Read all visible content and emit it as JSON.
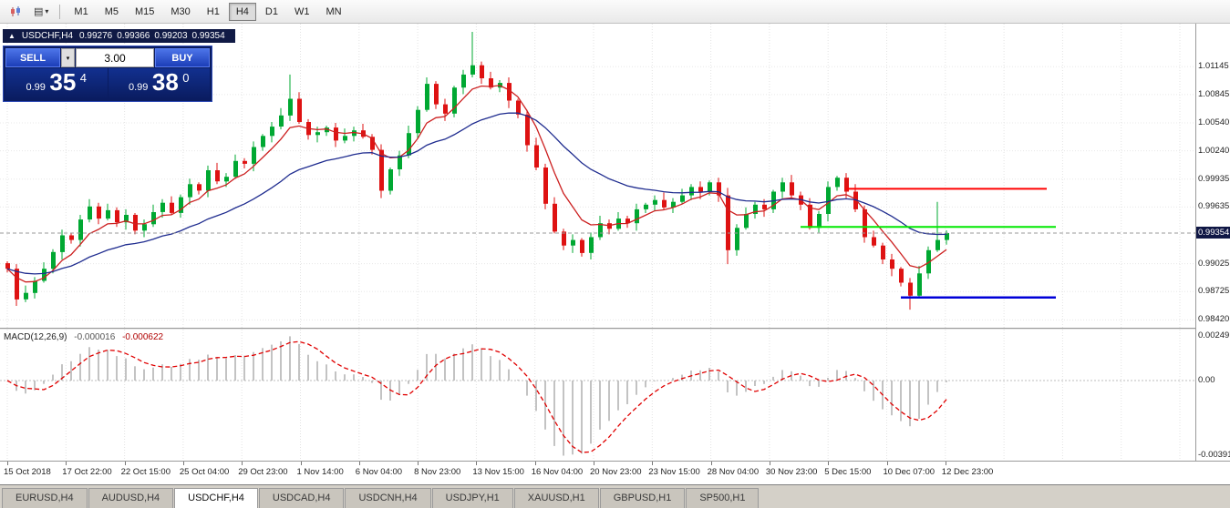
{
  "toolbar": {
    "timeframes": [
      "M1",
      "M5",
      "M15",
      "M30",
      "H1",
      "H4",
      "D1",
      "W1",
      "MN"
    ],
    "active_timeframe": "H4"
  },
  "chart_header": {
    "symbol": "USDCHF,H4",
    "open": "0.99276",
    "high": "0.99366",
    "low": "0.99203",
    "close": "0.99354"
  },
  "trade_panel": {
    "sell_label": "SELL",
    "buy_label": "BUY",
    "volume": "3.00",
    "sell_price": {
      "prefix": "0.99",
      "big": "35",
      "sup": "4"
    },
    "buy_price": {
      "prefix": "0.99",
      "big": "38",
      "sup": "0"
    }
  },
  "price_axis": {
    "labels": [
      "1.01145",
      "1.00845",
      "1.00540",
      "1.00240",
      "0.99935",
      "0.99635",
      "0.99025",
      "0.98725",
      "0.98420"
    ],
    "current_price": "0.99354"
  },
  "macd_panel": {
    "label": "MACD(12,26,9)",
    "value_main": "-0.000016",
    "value_signal": "-0.000622",
    "axis_labels": [
      "0.00249",
      "0.00",
      "-0.00391"
    ]
  },
  "time_axis": [
    "15 Oct 2018",
    "17 Oct 22:00",
    "22 Oct 15:00",
    "25 Oct 04:00",
    "29 Oct 23:00",
    "1 Nov 14:00",
    "6 Nov 04:00",
    "8 Nov 23:00",
    "13 Nov 15:00",
    "16 Nov 04:00",
    "20 Nov 23:00",
    "23 Nov 15:00",
    "28 Nov 04:00",
    "30 Nov 23:00",
    "5 Dec 15:00",
    "10 Dec 07:00",
    "12 Dec 23:00"
  ],
  "tabs": {
    "items": [
      "EURUSD,H4",
      "AUDUSD,H4",
      "USDCHF,H4",
      "USDCAD,H4",
      "USDCNH,H4",
      "USDJPY,H1",
      "XAUUSD,H1",
      "GBPUSD,H1",
      "SP500,H1"
    ],
    "active": "USDCHF,H4"
  },
  "chart_data": {
    "type": "candlestick",
    "symbol": "USDCHF",
    "timeframe": "H4",
    "last_ohlc": {
      "open": 0.99276,
      "high": 0.99366,
      "low": 0.99203,
      "close": 0.99354
    },
    "price_top": 1.01608,
    "price_bottom": 0.98335,
    "first_open": 0.9903,
    "closes": [
      0.9897,
      0.9864,
      0.9871,
      0.9884,
      0.9897,
      0.9915,
      0.9933,
      0.9928,
      0.995,
      0.9964,
      0.9951,
      0.996,
      0.9947,
      0.9955,
      0.9938,
      0.9945,
      0.9958,
      0.9968,
      0.9957,
      0.9974,
      0.9988,
      0.9981,
      1.0003,
      0.9991,
      0.9996,
      1.0013,
      1.001,
      1.0028,
      1.004,
      1.005,
      1.0062,
      1.008,
      1.0055,
      1.0041,
      1.0044,
      1.0049,
      1.0035,
      1.004,
      1.0046,
      1.0039,
      1.0025,
      0.9981,
      1.0004,
      1.0019,
      1.0043,
      1.0068,
      1.0096,
      1.0074,
      1.0064,
      1.0092,
      1.0106,
      1.0116,
      1.0102,
      1.0092,
      1.0097,
      1.0078,
      1.0063,
      1.003,
      1.0006,
      0.9967,
      0.9937,
      0.9922,
      0.9928,
      0.9914,
      0.9931,
      0.9946,
      0.994,
      0.9951,
      0.9946,
      0.9961,
      0.9966,
      0.9971,
      0.9963,
      0.9969,
      0.9976,
      0.9985,
      0.998,
      0.999,
      0.9976,
      0.9917,
      0.9941,
      0.9956,
      0.9966,
      0.9961,
      0.998,
      0.999,
      0.9976,
      0.9966,
      0.9941,
      0.9956,
      0.9985,
      0.9995,
      0.998,
      0.9961,
      0.9931,
      0.9922,
      0.9907,
      0.9897,
      0.9882,
      0.9868,
      0.9892,
      0.9917,
      0.9928,
      0.99354
    ],
    "spike_highs": {
      "31": 0.0022,
      "51": 0.0028,
      "102": 0.0034
    },
    "spike_lows": {
      "79": 0.0012,
      "99": 0.0008
    },
    "up_color": "#00A832",
    "down_color": "#DE1212",
    "h_lines": [
      {
        "name": "resistance-line",
        "color": "#FF0000",
        "price": 0.9983,
        "from_index": 92,
        "to_index": 114,
        "width": 2
      },
      {
        "name": "level-line",
        "color": "#00E800",
        "price": 0.9942,
        "from_index": 87,
        "to_index": 115,
        "width": 2
      },
      {
        "name": "support-line",
        "color": "#0000D8",
        "price": 0.9866,
        "from_index": 98,
        "to_index": 115,
        "width": 2.5
      }
    ],
    "moving_averages": [
      {
        "name": "fast-ma",
        "color": "#CC2020",
        "period": 6
      },
      {
        "name": "slow-ma",
        "color": "#1F2C8F",
        "period": 22
      }
    ],
    "macd": {
      "render_fast": 5,
      "render_slow": 10,
      "render_signal": 4,
      "top": 0.00249,
      "bottom": -0.00391,
      "histogram_color": "#B4B4B4",
      "signal_color": "#E00000"
    }
  }
}
